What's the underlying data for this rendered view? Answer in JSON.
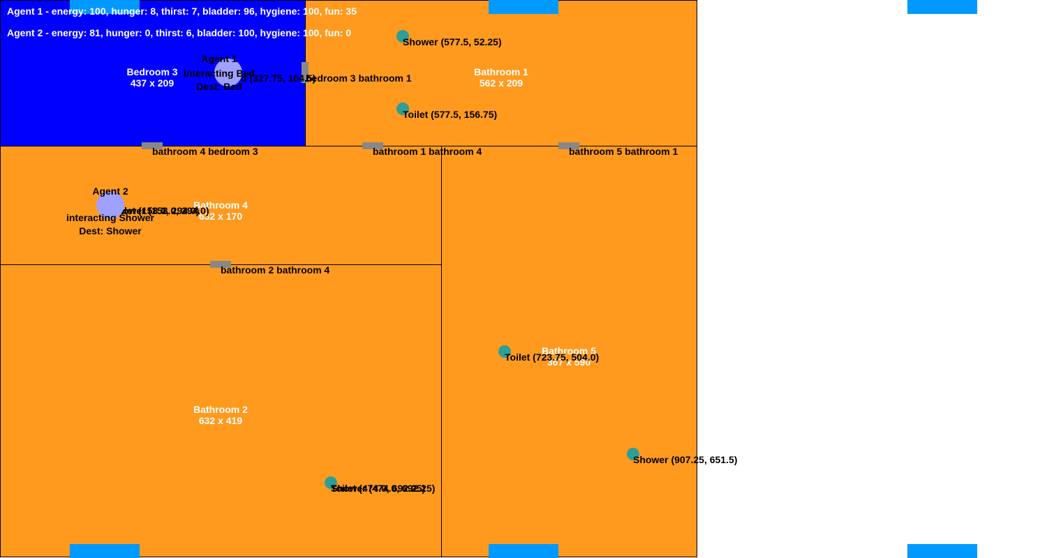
{
  "colors": {
    "room_default": "#ff9a1e",
    "room_highlight": "#0000ff",
    "window": "#0099ff",
    "door": "#888888",
    "object": "#2e9e98",
    "agent": "#a0a0ff"
  },
  "status": {
    "agent1": "Agent 1 - energy: 100, hunger: 8, thirst: 7, bladder: 96, hygiene: 100, fun: 35",
    "agent2": "Agent 2 - energy: 81, hunger: 0, thirst: 6, bladder: 100, hygiene: 100, fun: 0"
  },
  "rooms": {
    "bedroom3": {
      "name": "Bedroom 3",
      "size": "437 x 209"
    },
    "bathroom1": {
      "name": "Bathroom 1",
      "size": "562 x 209"
    },
    "bathroom4": {
      "name": "Bathroom 4",
      "size": "632 x 170"
    },
    "bathroom2": {
      "name": "Bathroom 2",
      "size": "632 x 419"
    },
    "bathroom5": {
      "name": "Bathroom 5",
      "size": "367 x 590"
    }
  },
  "doors": {
    "d1": "bedroom 3 bathroom 1",
    "d2": "bathroom 4 bedroom 3",
    "d3": "bathroom 1 bathroom 4",
    "d4": "bathroom 5 bathroom 1",
    "d5": "bathroom 2 bathroom 4"
  },
  "objects": {
    "bed3": "Bed (327.75, 104.5)",
    "shower1": "Shower (577.5, 52.25)",
    "toilet1": "Toilet (577.5, 156.75)",
    "toilet4": "Toilet (158.0, 294.0)",
    "shower4": "Shower (158.0, 294.0)",
    "toilet5": "Toilet (723.75, 504.0)",
    "shower5": "Shower (907.25, 651.5)",
    "toilet2": "Toilet (474.0, 692.25)",
    "shower2": "Shower (474.0, 692.25)"
  },
  "agents": {
    "agent1": {
      "name": "Agent 1",
      "action": "interacting Bed",
      "dest": "Dest: Bed"
    },
    "agent2": {
      "name": "Agent 2",
      "action": "interacting Shower",
      "dest": "Dest: Shower"
    }
  }
}
